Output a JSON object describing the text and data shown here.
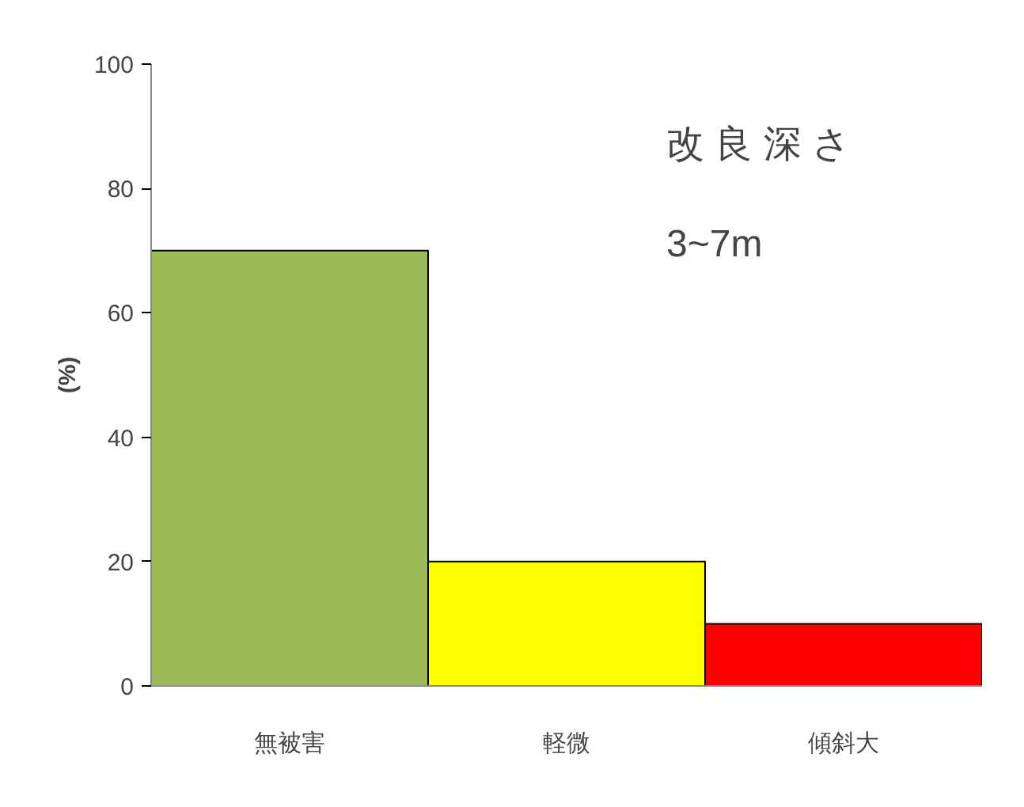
{
  "chart_data": {
    "type": "bar",
    "ylabel": "(%)",
    "categories": [
      "無被害",
      "軽微",
      "傾斜大"
    ],
    "values": [
      70,
      20,
      10
    ],
    "colors": [
      "#9bbb59",
      "#ffff00",
      "#ff0000"
    ],
    "ylim": [
      0,
      100
    ],
    "yticks": [
      0,
      20,
      40,
      60,
      80,
      100
    ],
    "grid": false,
    "annotations": [
      "改 良 深 さ",
      "3~7m"
    ]
  }
}
